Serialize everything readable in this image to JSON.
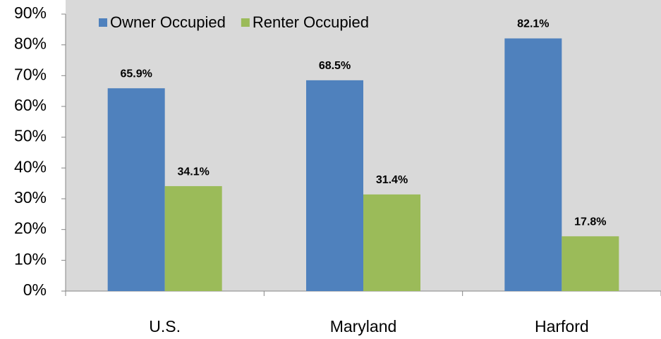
{
  "chart_data": {
    "type": "bar",
    "categories": [
      "U.S.",
      "Maryland",
      "Harford"
    ],
    "series": [
      {
        "name": "Owner Occupied",
        "color": "#4f81bd",
        "values": [
          65.9,
          68.5,
          82.1
        ],
        "value_labels": [
          "65.9%",
          "68.5%",
          "82.1%"
        ]
      },
      {
        "name": "Renter Occupied",
        "color": "#9bbb59",
        "values": [
          34.1,
          31.4,
          17.8
        ],
        "value_labels": [
          "34.1%",
          "31.4%",
          "17.8%"
        ]
      }
    ],
    "ylim": [
      0,
      90
    ],
    "yticks": [
      {
        "value": 0,
        "label": "0%"
      },
      {
        "value": 10,
        "label": "10%"
      },
      {
        "value": 20,
        "label": "20%"
      },
      {
        "value": 30,
        "label": "30%"
      },
      {
        "value": 40,
        "label": "40%"
      },
      {
        "value": 50,
        "label": "50%"
      },
      {
        "value": 60,
        "label": "60%"
      },
      {
        "value": 70,
        "label": "70%"
      },
      {
        "value": 80,
        "label": "80%"
      },
      {
        "value": 90,
        "label": "90%"
      }
    ],
    "legend": "upper left"
  }
}
